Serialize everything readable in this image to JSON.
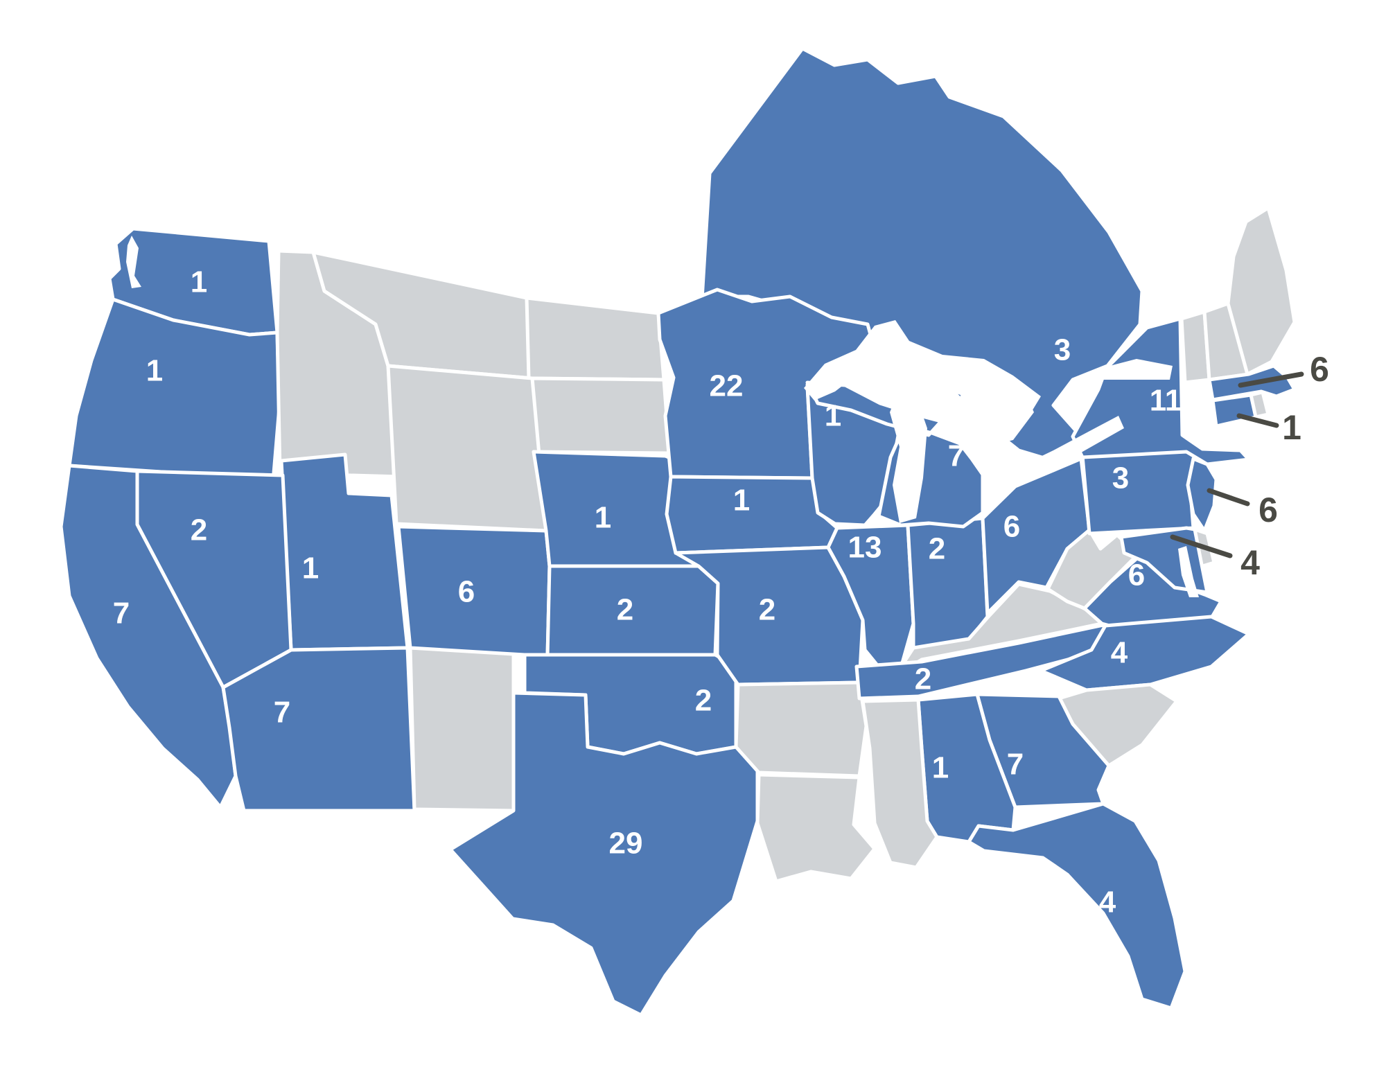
{
  "map": {
    "description": "US map infographic with counts per state; gray states have no value; northern Ontario/Canada landmass shown in blue with a value; four small eastern states labeled with callout leader lines",
    "colors": {
      "active": "#507ab5",
      "inactive": "#d0d3d6",
      "border": "#ffffff",
      "state_label": "#ffffff",
      "callout": "#4a4a44",
      "background": "#ffffff"
    },
    "regions": [
      {
        "id": "WA",
        "name": "Washington",
        "value": 1,
        "status": "active",
        "label_type": "on-map"
      },
      {
        "id": "OR",
        "name": "Oregon",
        "value": 1,
        "status": "active",
        "label_type": "on-map"
      },
      {
        "id": "CA",
        "name": "California",
        "value": 7,
        "status": "active",
        "label_type": "on-map"
      },
      {
        "id": "NV",
        "name": "Nevada",
        "value": 2,
        "status": "active",
        "label_type": "on-map"
      },
      {
        "id": "UT",
        "name": "Utah",
        "value": 1,
        "status": "active",
        "label_type": "on-map"
      },
      {
        "id": "AZ",
        "name": "Arizona",
        "value": 7,
        "status": "active",
        "label_type": "on-map"
      },
      {
        "id": "ID",
        "name": "Idaho",
        "value": null,
        "status": "inactive",
        "label_type": "none"
      },
      {
        "id": "MT",
        "name": "Montana",
        "value": null,
        "status": "inactive",
        "label_type": "none"
      },
      {
        "id": "WY",
        "name": "Wyoming",
        "value": null,
        "status": "inactive",
        "label_type": "none"
      },
      {
        "id": "NM",
        "name": "New Mexico",
        "value": null,
        "status": "inactive",
        "label_type": "none"
      },
      {
        "id": "CO",
        "name": "Colorado",
        "value": 6,
        "status": "active",
        "label_type": "on-map"
      },
      {
        "id": "ND",
        "name": "North Dakota",
        "value": null,
        "status": "inactive",
        "label_type": "none"
      },
      {
        "id": "SD",
        "name": "South Dakota",
        "value": null,
        "status": "inactive",
        "label_type": "none"
      },
      {
        "id": "NE",
        "name": "Nebraska",
        "value": 1,
        "status": "active",
        "label_type": "on-map"
      },
      {
        "id": "KS",
        "name": "Kansas",
        "value": 2,
        "status": "active",
        "label_type": "on-map"
      },
      {
        "id": "OK",
        "name": "Oklahoma",
        "value": 2,
        "status": "active",
        "label_type": "on-map"
      },
      {
        "id": "TX",
        "name": "Texas",
        "value": 29,
        "status": "active",
        "label_type": "on-map"
      },
      {
        "id": "MN",
        "name": "Minnesota",
        "value": 22,
        "status": "active",
        "label_type": "on-map"
      },
      {
        "id": "IA",
        "name": "Iowa",
        "value": 1,
        "status": "active",
        "label_type": "on-map"
      },
      {
        "id": "MO",
        "name": "Missouri",
        "value": 2,
        "status": "active",
        "label_type": "on-map"
      },
      {
        "id": "AR",
        "name": "Arkansas",
        "value": null,
        "status": "inactive",
        "label_type": "none"
      },
      {
        "id": "LA",
        "name": "Louisiana",
        "value": null,
        "status": "inactive",
        "label_type": "none"
      },
      {
        "id": "WI",
        "name": "Wisconsin",
        "value": 1,
        "status": "active",
        "label_type": "on-map"
      },
      {
        "id": "IL",
        "name": "Illinois",
        "value": 13,
        "status": "active",
        "label_type": "on-map"
      },
      {
        "id": "IN",
        "name": "Indiana",
        "value": 2,
        "status": "active",
        "label_type": "on-map"
      },
      {
        "id": "MI",
        "name": "Michigan",
        "value": 7,
        "status": "active",
        "label_type": "on-map"
      },
      {
        "id": "OH",
        "name": "Ohio",
        "value": 6,
        "status": "active",
        "label_type": "on-map"
      },
      {
        "id": "KY",
        "name": "Kentucky",
        "value": null,
        "status": "inactive",
        "label_type": "none"
      },
      {
        "id": "TN",
        "name": "Tennessee",
        "value": 2,
        "status": "active",
        "label_type": "on-map"
      },
      {
        "id": "WV",
        "name": "West Virginia",
        "value": null,
        "status": "inactive",
        "label_type": "none"
      },
      {
        "id": "VA",
        "name": "Virginia",
        "value": 6,
        "status": "active",
        "label_type": "on-map"
      },
      {
        "id": "NC",
        "name": "North Carolina",
        "value": 4,
        "status": "active",
        "label_type": "on-map"
      },
      {
        "id": "SC",
        "name": "South Carolina",
        "value": null,
        "status": "inactive",
        "label_type": "none"
      },
      {
        "id": "GA",
        "name": "Georgia",
        "value": 7,
        "status": "active",
        "label_type": "on-map"
      },
      {
        "id": "AL",
        "name": "Alabama",
        "value": 1,
        "status": "active",
        "label_type": "on-map"
      },
      {
        "id": "MS",
        "name": "Mississippi",
        "value": null,
        "status": "inactive",
        "label_type": "none"
      },
      {
        "id": "FL",
        "name": "Florida",
        "value": 4,
        "status": "active",
        "label_type": "on-map"
      },
      {
        "id": "PA",
        "name": "Pennsylvania",
        "value": 3,
        "status": "active",
        "label_type": "on-map"
      },
      {
        "id": "NY",
        "name": "New York",
        "value": 11,
        "status": "active",
        "label_type": "on-map"
      },
      {
        "id": "NJ",
        "name": "New Jersey",
        "value": 6,
        "status": "active",
        "label_type": "callout"
      },
      {
        "id": "DE",
        "name": "Delaware",
        "value": null,
        "status": "inactive",
        "label_type": "none"
      },
      {
        "id": "MD",
        "name": "Maryland",
        "value": 4,
        "status": "active",
        "label_type": "callout"
      },
      {
        "id": "VT",
        "name": "Vermont",
        "value": null,
        "status": "inactive",
        "label_type": "none"
      },
      {
        "id": "NH",
        "name": "New Hampshire",
        "value": null,
        "status": "inactive",
        "label_type": "none"
      },
      {
        "id": "ME",
        "name": "Maine",
        "value": null,
        "status": "inactive",
        "label_type": "none"
      },
      {
        "id": "MA",
        "name": "Massachusetts",
        "value": 6,
        "status": "active",
        "label_type": "callout"
      },
      {
        "id": "RI",
        "name": "Rhode Island",
        "value": null,
        "status": "inactive",
        "label_type": "none"
      },
      {
        "id": "CT",
        "name": "Connecticut",
        "value": 1,
        "status": "active",
        "label_type": "callout"
      },
      {
        "id": "ON",
        "name": "Ontario (Canada)",
        "value": 3,
        "status": "active",
        "label_type": "on-map"
      }
    ],
    "callouts": [
      {
        "id": "MA",
        "value": 6
      },
      {
        "id": "CT",
        "value": 1
      },
      {
        "id": "NJ",
        "value": 6
      },
      {
        "id": "MD",
        "value": 4
      }
    ]
  }
}
